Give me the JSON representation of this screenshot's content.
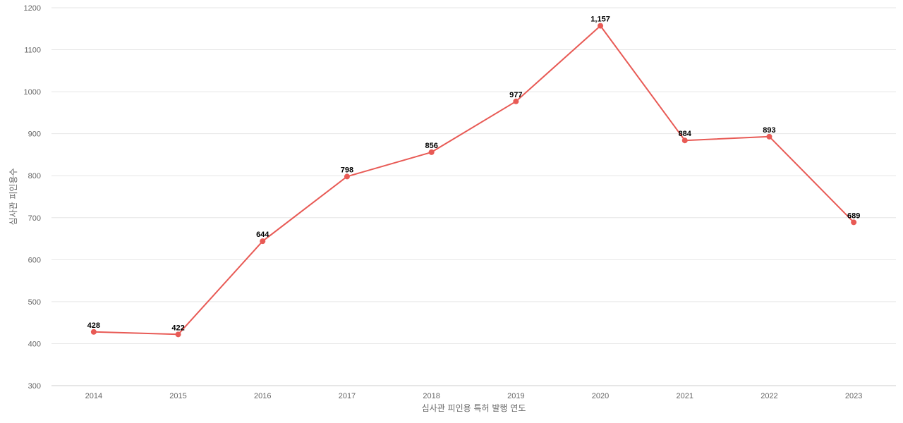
{
  "chart_data": {
    "type": "line",
    "categories": [
      "2014",
      "2015",
      "2016",
      "2017",
      "2018",
      "2019",
      "2020",
      "2021",
      "2022",
      "2023"
    ],
    "series": [
      {
        "values": [
          428,
          422,
          644,
          798,
          856,
          977,
          1157,
          884,
          893,
          689
        ],
        "data_labels": [
          "428",
          "422",
          "644",
          "798",
          "856",
          "977",
          "1,157",
          "884",
          "893",
          "689"
        ],
        "color": "#e85a55"
      }
    ],
    "xlabel": "심사관 피인용 특허 발행 연도",
    "ylabel": "심사관 피인용수",
    "ylim": [
      300,
      1200
    ],
    "yticks": [
      300,
      400,
      500,
      600,
      700,
      800,
      900,
      1000,
      1100,
      1200
    ],
    "grid": true,
    "gridline_color": "#e6e6e6"
  }
}
